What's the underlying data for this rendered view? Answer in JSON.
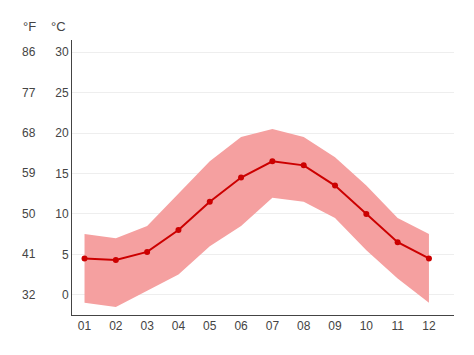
{
  "chart_data": {
    "type": "line",
    "x": [
      1,
      2,
      3,
      4,
      5,
      6,
      7,
      8,
      9,
      10,
      11,
      12
    ],
    "xlim": [
      0.6,
      12.8
    ],
    "xticks": [
      {
        "value": 1,
        "label": "01"
      },
      {
        "value": 2,
        "label": "02"
      },
      {
        "value": 3,
        "label": "03"
      },
      {
        "value": 4,
        "label": "04"
      },
      {
        "value": 5,
        "label": "05"
      },
      {
        "value": 6,
        "label": "06"
      },
      {
        "value": 7,
        "label": "07"
      },
      {
        "value": 8,
        "label": "08"
      },
      {
        "value": 9,
        "label": "09"
      },
      {
        "value": 10,
        "label": "10"
      },
      {
        "value": 11,
        "label": "11"
      },
      {
        "value": 12,
        "label": "12"
      }
    ],
    "ylim": [
      -2.5,
      31.5
    ],
    "yticks": [
      0,
      5,
      10,
      15,
      20,
      25,
      30
    ],
    "grid": true,
    "series": [
      {
        "type": "band",
        "lower": [
          -1.0,
          -1.5,
          0.5,
          2.5,
          6.0,
          8.5,
          12.0,
          11.5,
          9.5,
          5.5,
          2.0,
          -1.0
        ],
        "upper": [
          7.5,
          7.0,
          8.5,
          12.5,
          16.5,
          19.5,
          20.5,
          19.5,
          17.0,
          13.5,
          9.5,
          7.5
        ],
        "color": "#f5a0a0"
      },
      {
        "type": "line",
        "values": [
          4.5,
          4.3,
          5.3,
          8.0,
          11.5,
          14.5,
          16.5,
          16.0,
          13.5,
          10.0,
          6.5,
          4.5
        ],
        "color": "#cc0000",
        "marker": "circle"
      }
    ],
    "annotations": [
      {
        "text": "°F"
      },
      {
        "text": "°C"
      },
      {
        "text": "32",
        "y": 0
      },
      {
        "text": "41",
        "y": 5
      },
      {
        "text": "50",
        "y": 10
      },
      {
        "text": "59",
        "y": 15
      },
      {
        "text": "68",
        "y": 20
      },
      {
        "text": "77",
        "y": 25
      },
      {
        "text": "86",
        "y": 30
      }
    ]
  }
}
